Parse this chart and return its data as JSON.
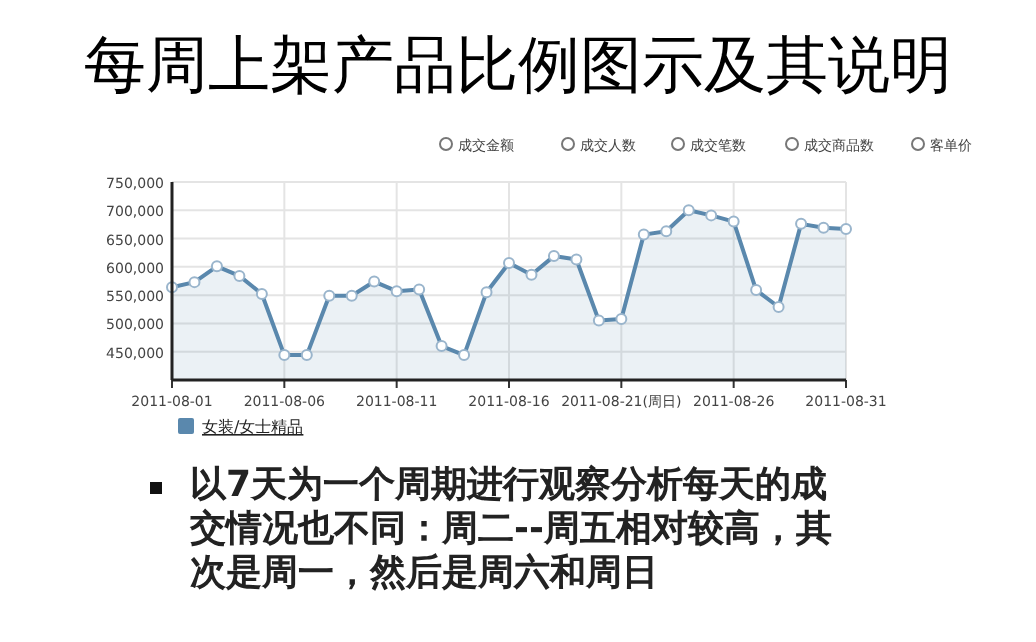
{
  "chart_data": {
    "type": "area",
    "title": "每周上架产品比例图示及其说明",
    "x": [
      "2011-08-01",
      "2011-08-02",
      "2011-08-03",
      "2011-08-04",
      "2011-08-05",
      "2011-08-06",
      "2011-08-07",
      "2011-08-08",
      "2011-08-09",
      "2011-08-10",
      "2011-08-11",
      "2011-08-12",
      "2011-08-13",
      "2011-08-14",
      "2011-08-15",
      "2011-08-16",
      "2011-08-17",
      "2011-08-18",
      "2011-08-19",
      "2011-08-20",
      "2011-08-21",
      "2011-08-22",
      "2011-08-23",
      "2011-08-24",
      "2011-08-25",
      "2011-08-26",
      "2011-08-27",
      "2011-08-28",
      "2011-08-29",
      "2011-08-30",
      "2011-08-31"
    ],
    "series": [
      {
        "name": "女装/女士精品",
        "color": "#5a88ad",
        "values": [
          564000,
          573000,
          601000,
          584000,
          552000,
          444000,
          444000,
          549000,
          549000,
          574000,
          557000,
          560000,
          460000,
          444000,
          555000,
          607000,
          586000,
          619000,
          613000,
          505000,
          508000,
          657000,
          663000,
          700000,
          691000,
          680000,
          559000,
          529000,
          676000,
          669000,
          667000
        ]
      }
    ],
    "xlim": [
      "2011-08-01",
      "2011-08-31"
    ],
    "xticks": [
      {
        "value": "2011-08-01",
        "label": "2011-08-01"
      },
      {
        "value": "2011-08-06",
        "label": "2011-08-06"
      },
      {
        "value": "2011-08-11",
        "label": "2011-08-11"
      },
      {
        "value": "2011-08-16",
        "label": "2011-08-16"
      },
      {
        "value": "2011-08-21",
        "label": "2011-08-21(周日)"
      },
      {
        "value": "2011-08-26",
        "label": "2011-08-26"
      },
      {
        "value": "2011-08-31",
        "label": "2011-08-31"
      }
    ],
    "ylim": [
      400000,
      750000
    ],
    "yticks": [
      {
        "value": 450000,
        "label": "450,000"
      },
      {
        "value": 500000,
        "label": "500,000"
      },
      {
        "value": 550000,
        "label": "550,000"
      },
      {
        "value": 600000,
        "label": "600,000"
      },
      {
        "value": 650000,
        "label": "650,000"
      },
      {
        "value": 700000,
        "label": "700,000"
      },
      {
        "value": 750000,
        "label": "750,000"
      }
    ],
    "grid": true,
    "marker": "circle",
    "legend": "bottom left",
    "annotations": [
      "成交金额",
      "成交人数",
      "成交笔数",
      "成交商品数",
      "客单价",
      "以7天为一个周期进行观察分析每天的成交情况也不同：周二--周五相对较高，其次是周一，然后是周六和周日"
    ]
  }
}
